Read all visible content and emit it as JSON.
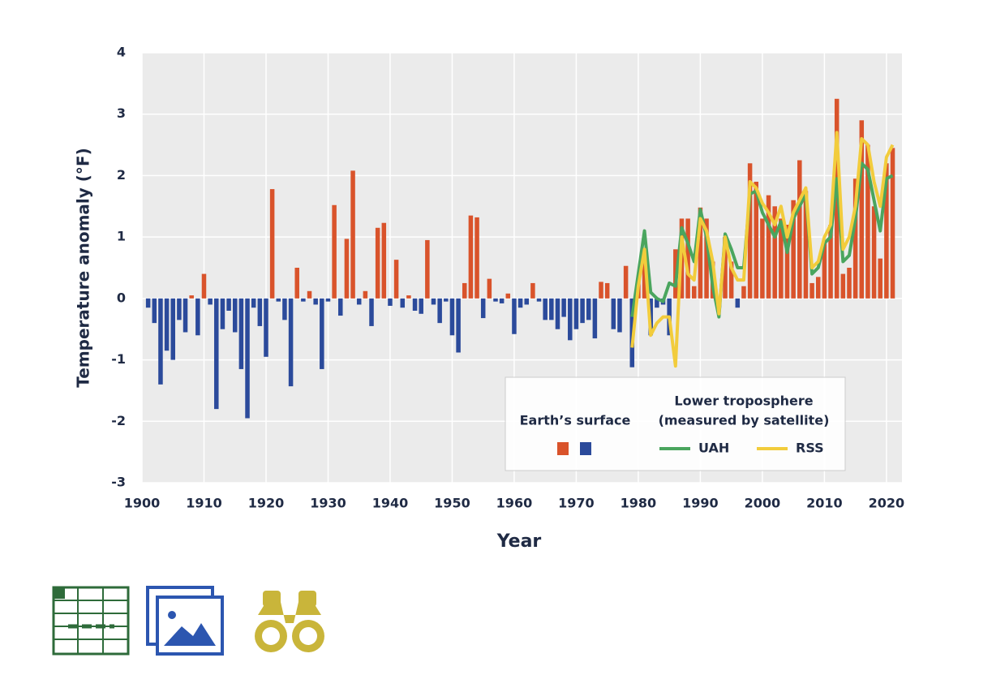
{
  "chart_data": {
    "type": "bar",
    "ylabel": "Temperature anomaly (°F)",
    "xlabel": "Year",
    "x": [
      1901,
      1902,
      1903,
      1904,
      1905,
      1906,
      1907,
      1908,
      1909,
      1910,
      1911,
      1912,
      1913,
      1914,
      1915,
      1916,
      1917,
      1918,
      1919,
      1920,
      1921,
      1922,
      1923,
      1924,
      1925,
      1926,
      1927,
      1928,
      1929,
      1930,
      1931,
      1932,
      1933,
      1934,
      1935,
      1936,
      1937,
      1938,
      1939,
      1940,
      1941,
      1942,
      1943,
      1944,
      1945,
      1946,
      1947,
      1948,
      1949,
      1950,
      1951,
      1952,
      1953,
      1954,
      1955,
      1956,
      1957,
      1958,
      1959,
      1960,
      1961,
      1962,
      1963,
      1964,
      1965,
      1966,
      1967,
      1968,
      1969,
      1970,
      1971,
      1972,
      1973,
      1974,
      1975,
      1976,
      1977,
      1978,
      1979,
      1980,
      1981,
      1982,
      1983,
      1984,
      1985,
      1986,
      1987,
      1988,
      1989,
      1990,
      1991,
      1992,
      1993,
      1994,
      1995,
      1996,
      1997,
      1998,
      1999,
      2000,
      2001,
      2002,
      2003,
      2004,
      2005,
      2006,
      2007,
      2008,
      2009,
      2010,
      2011,
      2012,
      2013,
      2014,
      2015,
      2016,
      2017,
      2018,
      2019,
      2020,
      2021
    ],
    "values": [
      -0.15,
      -0.4,
      -1.4,
      -0.85,
      -1.0,
      -0.35,
      -0.55,
      0.05,
      -0.6,
      0.4,
      -0.1,
      -1.8,
      -0.5,
      -0.2,
      -0.55,
      -1.15,
      -1.95,
      -0.15,
      -0.45,
      -0.95,
      1.78,
      -0.05,
      -0.35,
      -1.43,
      0.5,
      -0.05,
      0.12,
      -0.1,
      -1.15,
      -0.05,
      1.52,
      -0.28,
      0.97,
      2.08,
      -0.1,
      0.12,
      -0.45,
      1.15,
      1.23,
      -0.12,
      0.63,
      -0.15,
      0.05,
      -0.2,
      -0.25,
      0.95,
      -0.1,
      -0.4,
      -0.05,
      -0.6,
      -0.88,
      0.25,
      1.35,
      1.32,
      -0.32,
      0.32,
      -0.05,
      -0.08,
      0.08,
      -0.58,
      -0.15,
      -0.1,
      0.25,
      -0.05,
      -0.35,
      -0.35,
      -0.5,
      -0.3,
      -0.68,
      -0.5,
      -0.4,
      -0.35,
      -0.65,
      0.27,
      0.25,
      -0.5,
      -0.55,
      0.53,
      -1.12,
      0.3,
      0.6,
      -0.6,
      -0.15,
      -0.1,
      -0.6,
      0.8,
      1.3,
      1.3,
      0.2,
      1.48,
      1.3,
      0.6,
      -0.15,
      1.0,
      0.6,
      -0.15,
      0.2,
      2.2,
      1.9,
      1.3,
      1.68,
      1.5,
      1.3,
      1.2,
      1.6,
      2.25,
      1.75,
      0.25,
      0.35,
      0.95,
      1.2,
      3.25,
      0.4,
      0.5,
      1.95,
      2.9,
      2.5,
      1.5,
      0.65,
      2.2,
      2.45
    ],
    "positive_color": "#d9532b",
    "negative_color": "#2b4a9b",
    "bar_legend": "Earth’s surface",
    "line_legend_title": [
      "Lower troposphere",
      "(measured by satellite)"
    ],
    "series": [
      {
        "name": "UAH",
        "color": "#4aa55e",
        "values": [
          null,
          null,
          null,
          null,
          null,
          null,
          null,
          null,
          null,
          null,
          null,
          null,
          null,
          null,
          null,
          null,
          null,
          null,
          null,
          null,
          null,
          null,
          null,
          null,
          null,
          null,
          null,
          null,
          null,
          null,
          null,
          null,
          null,
          null,
          null,
          null,
          null,
          null,
          null,
          null,
          null,
          null,
          null,
          null,
          null,
          null,
          null,
          null,
          null,
          null,
          null,
          null,
          null,
          null,
          null,
          null,
          null,
          null,
          null,
          null,
          null,
          null,
          null,
          null,
          null,
          null,
          null,
          null,
          null,
          null,
          null,
          null,
          null,
          null,
          null,
          null,
          null,
          null,
          -0.3,
          0.4,
          1.1,
          0.1,
          0.0,
          -0.05,
          0.25,
          0.2,
          1.15,
          0.9,
          0.6,
          1.45,
          1.0,
          0.2,
          -0.3,
          1.05,
          0.8,
          0.5,
          0.5,
          1.7,
          1.75,
          1.4,
          1.2,
          1.0,
          1.25,
          0.75,
          1.3,
          1.5,
          1.7,
          0.4,
          0.5,
          0.9,
          1.0,
          1.95,
          0.6,
          0.7,
          1.3,
          2.2,
          2.1,
          1.6,
          1.1,
          1.95,
          2.0
        ]
      },
      {
        "name": "RSS",
        "color": "#f2cc3c",
        "values": [
          null,
          null,
          null,
          null,
          null,
          null,
          null,
          null,
          null,
          null,
          null,
          null,
          null,
          null,
          null,
          null,
          null,
          null,
          null,
          null,
          null,
          null,
          null,
          null,
          null,
          null,
          null,
          null,
          null,
          null,
          null,
          null,
          null,
          null,
          null,
          null,
          null,
          null,
          null,
          null,
          null,
          null,
          null,
          null,
          null,
          null,
          null,
          null,
          null,
          null,
          null,
          null,
          null,
          null,
          null,
          null,
          null,
          null,
          null,
          null,
          null,
          null,
          null,
          null,
          null,
          null,
          null,
          null,
          null,
          null,
          null,
          null,
          null,
          null,
          null,
          null,
          null,
          null,
          -0.8,
          0.2,
          0.8,
          -0.6,
          -0.4,
          -0.3,
          -0.3,
          -1.1,
          1.0,
          0.4,
          0.3,
          1.3,
          1.1,
          0.6,
          -0.25,
          1.0,
          0.5,
          0.3,
          0.3,
          1.9,
          1.8,
          1.55,
          1.4,
          1.2,
          1.5,
          1.0,
          1.4,
          1.6,
          1.8,
          0.5,
          0.6,
          1.0,
          1.2,
          2.7,
          0.8,
          1.0,
          1.5,
          2.6,
          2.5,
          1.9,
          1.5,
          2.3,
          2.5
        ]
      }
    ],
    "xlim": [
      1900,
      2022.5
    ],
    "xticks": [
      1900,
      1910,
      1920,
      1930,
      1940,
      1950,
      1960,
      1970,
      1980,
      1990,
      2000,
      2010,
      2020
    ],
    "ylim": [
      -3,
      4
    ],
    "yticks": [
      -3,
      -2,
      -1,
      0,
      1,
      2,
      3,
      4
    ],
    "grid": true,
    "legend": "bottom-right"
  }
}
